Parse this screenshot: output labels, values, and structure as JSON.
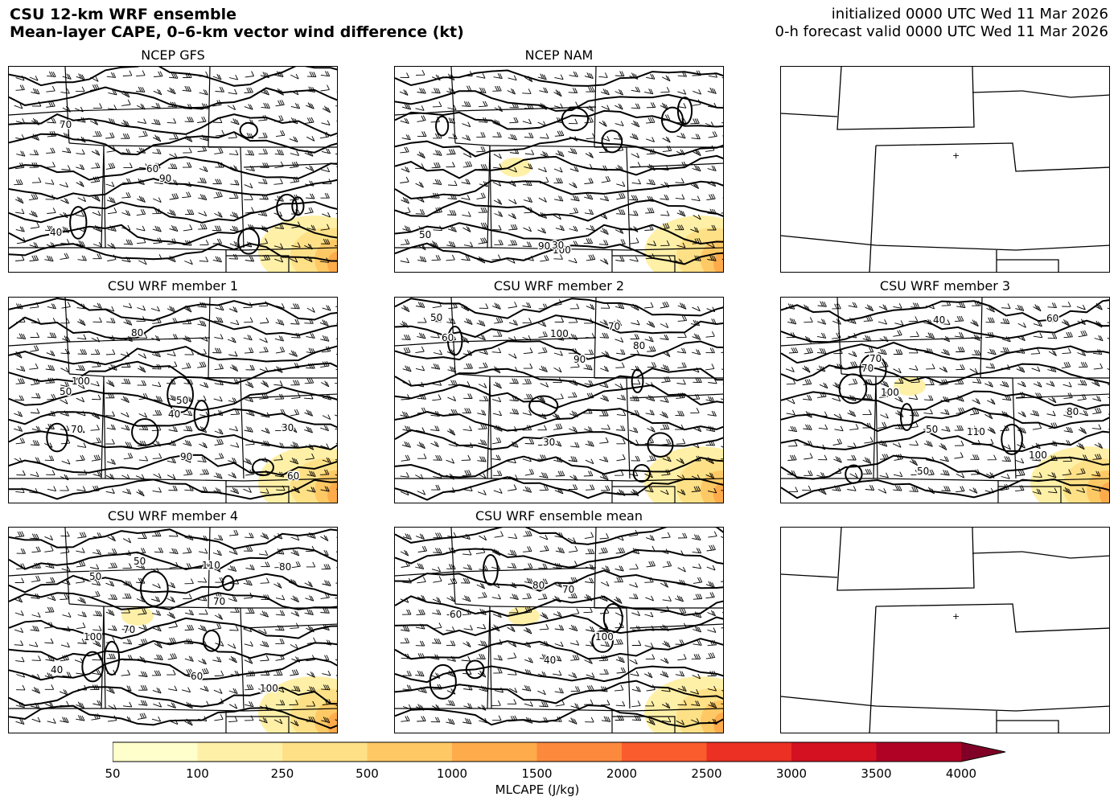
{
  "header": {
    "title_line1": "CSU 12-km WRF ensemble",
    "title_line2": "Mean-layer CAPE, 0–6-km vector wind difference (kt)",
    "init_line": "initialized 0000 UTC Wed 11 Mar 2026",
    "valid_line": "0-h forecast valid 0000 UTC Wed 11 Mar 2026"
  },
  "panels": [
    {
      "title": "NCEP GFS",
      "contour_labels": [
        "90",
        "70",
        "60",
        "40"
      ]
    },
    {
      "title": "NCEP NAM",
      "contour_labels": [
        "100",
        "90",
        "50",
        "30"
      ]
    },
    {
      "title": "",
      "contour_labels": []
    },
    {
      "title": "CSU WRF member 1",
      "contour_labels": [
        "90",
        "100",
        "70",
        "80",
        "60",
        "50",
        "40",
        "50",
        "30"
      ]
    },
    {
      "title": "CSU WRF member 2",
      "contour_labels": [
        "90",
        "100",
        "70",
        "80",
        "60",
        "50",
        "30"
      ]
    },
    {
      "title": "CSU WRF member 3",
      "contour_labels": [
        "110",
        "100",
        "100",
        "70",
        "70",
        "80",
        "50",
        "60",
        "50",
        "40"
      ]
    },
    {
      "title": "CSU WRF member 4",
      "contour_labels": [
        "110",
        "100",
        "100",
        "70",
        "70",
        "80",
        "50",
        "60",
        "50",
        "40"
      ]
    },
    {
      "title": "CSU WRF ensemble mean",
      "contour_labels": [
        "100",
        "70",
        "80",
        "60",
        "40"
      ]
    },
    {
      "title": "",
      "contour_labels": []
    }
  ],
  "colorbar": {
    "label": "MLCAPE (J/kg)",
    "ticks": [
      "50",
      "100",
      "250",
      "500",
      "1000",
      "1500",
      "2000",
      "2500",
      "3000",
      "3500",
      "4000"
    ],
    "colors": [
      "#ffffcc",
      "#fff0a8",
      "#fee187",
      "#fec965",
      "#feab4b",
      "#fd893c",
      "#fa5c2e",
      "#ec3023",
      "#d31121",
      "#af0225",
      "#800026"
    ]
  }
}
